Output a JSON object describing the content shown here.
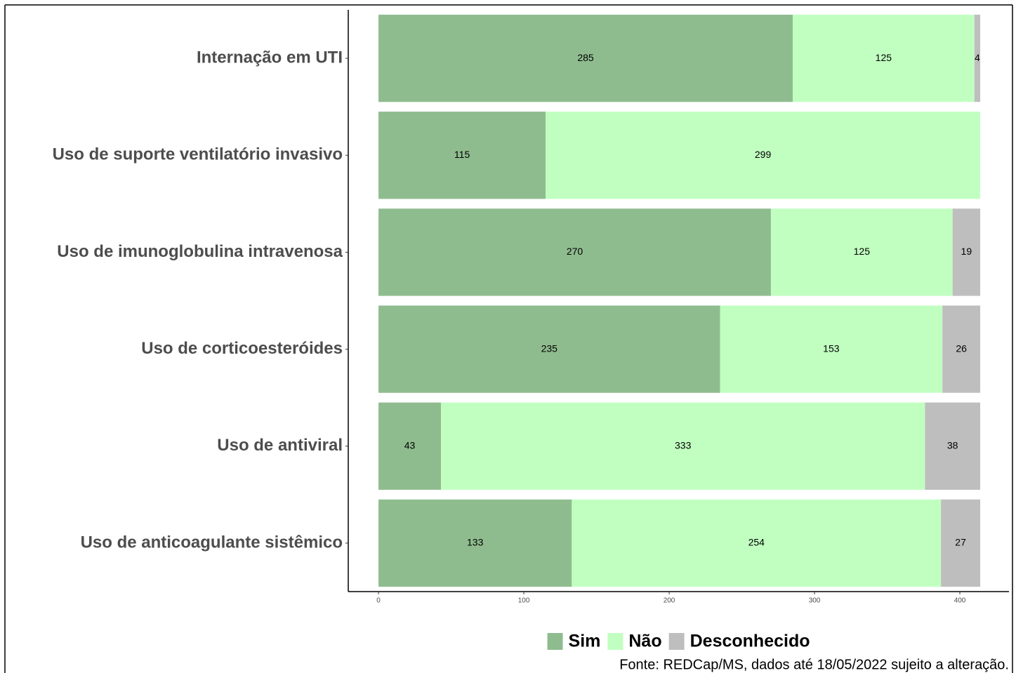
{
  "chart_data": {
    "type": "stacked-bar-horizontal",
    "categories": [
      "Internação em UTI",
      "Uso de suporte ventilatório invasivo",
      "Uso de imunoglobulina intravenosa",
      "Uso de corticoesteróides",
      "Uso de antiviral",
      "Uso de anticoagulante sistêmico"
    ],
    "series": [
      {
        "name": "Sim",
        "color": "#8fbc8f",
        "values": [
          285,
          115,
          270,
          235,
          43,
          133
        ]
      },
      {
        "name": "Não",
        "color": "#c1ffc1",
        "values": [
          125,
          299,
          125,
          153,
          333,
          254
        ]
      },
      {
        "name": "Desconhecido",
        "color": "#bebebe",
        "values": [
          4,
          null,
          19,
          26,
          38,
          27
        ]
      }
    ],
    "xlim": [
      -20.8,
      433.8
    ],
    "xticks": [
      0,
      100,
      200,
      300,
      400
    ],
    "legend": "bottom",
    "caption": "Fonte: REDCap/MS, dados até 18/05/2022 sujeito a alteração."
  }
}
